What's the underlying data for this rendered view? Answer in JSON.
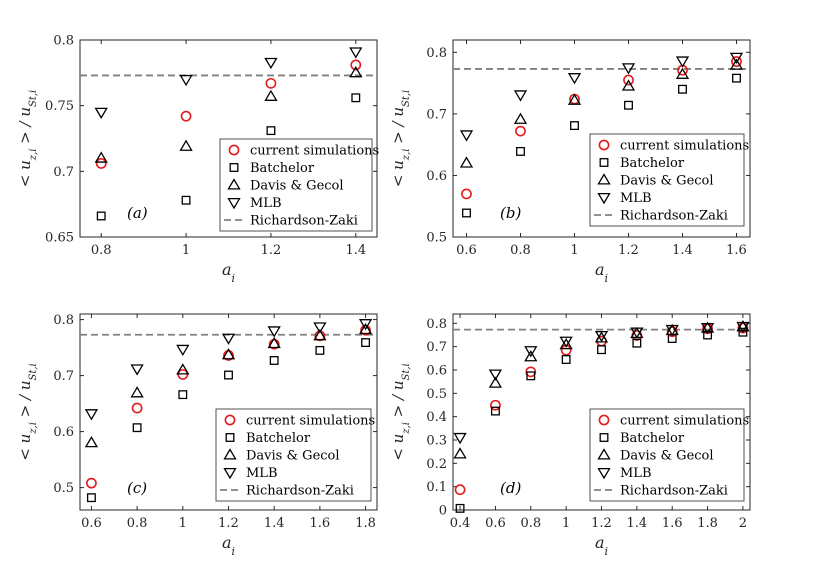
{
  "chart_data": [
    {
      "type": "scatter",
      "panel_label": "(a)",
      "xlabel": "a_i",
      "ylabel": "< u_{z,i} > / u_{St,i}",
      "xlim": [
        0.75,
        1.45
      ],
      "ylim": [
        0.65,
        0.8
      ],
      "xticks": [
        0.8,
        1,
        1.2,
        1.4
      ],
      "xtick_labels": [
        "0.8",
        "1",
        "1.2",
        "1.4"
      ],
      "yticks": [
        0.65,
        0.7,
        0.75,
        0.8
      ],
      "ytick_labels": [
        "0.65",
        "0.7",
        "0.75",
        "0.8"
      ],
      "grid": false,
      "legend_position": "bottom-right",
      "reference_line": {
        "name": "Richardson-Zaki",
        "y": 0.773
      },
      "series": [
        {
          "name": "current simulations",
          "marker": "circle",
          "color": "#e41a1c",
          "x": [
            0.8,
            1.0,
            1.2,
            1.4
          ],
          "y": [
            0.706,
            0.742,
            0.767,
            0.781
          ]
        },
        {
          "name": "Batchelor",
          "marker": "square",
          "color": "#000000",
          "x": [
            0.8,
            1.0,
            1.2,
            1.4
          ],
          "y": [
            0.666,
            0.678,
            0.731,
            0.756
          ]
        },
        {
          "name": "Davis & Gecol",
          "marker": "triangle-up",
          "color": "#000000",
          "x": [
            0.8,
            1.0,
            1.2,
            1.4
          ],
          "y": [
            0.71,
            0.719,
            0.757,
            0.775
          ]
        },
        {
          "name": "MLB",
          "marker": "triangle-down",
          "color": "#000000",
          "x": [
            0.8,
            1.0,
            1.2,
            1.4
          ],
          "y": [
            0.745,
            0.77,
            0.783,
            0.791
          ]
        }
      ]
    },
    {
      "type": "scatter",
      "panel_label": "(b)",
      "xlabel": "a_i",
      "ylabel": "< u_{z,i} > / u_{St,i}",
      "xlim": [
        0.55,
        1.65
      ],
      "ylim": [
        0.5,
        0.82
      ],
      "xticks": [
        0.6,
        0.8,
        1,
        1.2,
        1.4,
        1.6
      ],
      "xtick_labels": [
        "0.6",
        "0.8",
        "1",
        "1.2",
        "1.4",
        "1.6"
      ],
      "yticks": [
        0.5,
        0.6,
        0.7,
        0.8
      ],
      "ytick_labels": [
        "0.5",
        "0.6",
        "0.7",
        "0.8"
      ],
      "grid": false,
      "legend_position": "bottom-right",
      "reference_line": {
        "name": "Richardson-Zaki",
        "y": 0.773
      },
      "series": [
        {
          "name": "current simulations",
          "marker": "circle",
          "color": "#e41a1c",
          "x": [
            0.6,
            0.8,
            1.0,
            1.2,
            1.4,
            1.6
          ],
          "y": [
            0.57,
            0.672,
            0.724,
            0.755,
            0.771,
            0.785
          ]
        },
        {
          "name": "Batchelor",
          "marker": "square",
          "color": "#000000",
          "x": [
            0.6,
            0.8,
            1.0,
            1.2,
            1.4,
            1.6
          ],
          "y": [
            0.539,
            0.639,
            0.681,
            0.714,
            0.74,
            0.758
          ]
        },
        {
          "name": "Davis & Gecol",
          "marker": "triangle-up",
          "color": "#000000",
          "x": [
            0.6,
            0.8,
            1.0,
            1.2,
            1.4,
            1.6
          ],
          "y": [
            0.62,
            0.691,
            0.722,
            0.745,
            0.764,
            0.779
          ]
        },
        {
          "name": "MLB",
          "marker": "triangle-down",
          "color": "#000000",
          "x": [
            0.6,
            0.8,
            1.0,
            1.2,
            1.4,
            1.6
          ],
          "y": [
            0.666,
            0.731,
            0.759,
            0.775,
            0.786,
            0.792
          ]
        }
      ]
    },
    {
      "type": "scatter",
      "panel_label": "(c)",
      "xlabel": "a_i",
      "ylabel": "< u_{z,i} > / u_{St,i}",
      "xlim": [
        0.55,
        1.85
      ],
      "ylim": [
        0.46,
        0.81
      ],
      "xticks": [
        0.6,
        0.8,
        1,
        1.2,
        1.4,
        1.6,
        1.8
      ],
      "xtick_labels": [
        "0.6",
        "0.8",
        "1",
        "1.2",
        "1.4",
        "1.6",
        "1.8"
      ],
      "yticks": [
        0.5,
        0.6,
        0.7,
        0.8
      ],
      "ytick_labels": [
        "0.5",
        "0.6",
        "0.7",
        "0.8"
      ],
      "grid": false,
      "legend_position": "bottom-right",
      "reference_line": {
        "name": "Richardson-Zaki",
        "y": 0.773
      },
      "series": [
        {
          "name": "current simulations",
          "marker": "circle",
          "color": "#e41a1c",
          "x": [
            0.6,
            0.8,
            1.0,
            1.2,
            1.4,
            1.6,
            1.8
          ],
          "y": [
            0.508,
            0.642,
            0.702,
            0.736,
            0.756,
            0.771,
            0.781
          ]
        },
        {
          "name": "Batchelor",
          "marker": "square",
          "color": "#000000",
          "x": [
            0.6,
            0.8,
            1.0,
            1.2,
            1.4,
            1.6,
            1.8
          ],
          "y": [
            0.482,
            0.607,
            0.666,
            0.701,
            0.727,
            0.745,
            0.759
          ]
        },
        {
          "name": "Davis & Gecol",
          "marker": "triangle-up",
          "color": "#000000",
          "x": [
            0.6,
            0.8,
            1.0,
            1.2,
            1.4,
            1.6,
            1.8
          ],
          "y": [
            0.58,
            0.669,
            0.71,
            0.737,
            0.757,
            0.771,
            0.782
          ]
        },
        {
          "name": "MLB",
          "marker": "triangle-down",
          "color": "#000000",
          "x": [
            0.6,
            0.8,
            1.0,
            1.2,
            1.4,
            1.6,
            1.8
          ],
          "y": [
            0.632,
            0.712,
            0.747,
            0.767,
            0.78,
            0.787,
            0.793
          ]
        }
      ]
    },
    {
      "type": "scatter",
      "panel_label": "(d)",
      "xlabel": "a_i",
      "ylabel": "< u_{z,i} > / u_{St,i}",
      "xlim": [
        0.36,
        2.04
      ],
      "ylim": [
        0,
        0.84
      ],
      "xticks": [
        0.4,
        0.6,
        0.8,
        1,
        1.2,
        1.4,
        1.6,
        1.8,
        2
      ],
      "xtick_labels": [
        "0.4",
        "0.6",
        "0.8",
        "1",
        "1.2",
        "1.4",
        "1.6",
        "1.8",
        "2"
      ],
      "yticks": [
        0,
        0.1,
        0.2,
        0.3,
        0.4,
        0.5,
        0.6,
        0.7,
        0.8
      ],
      "ytick_labels": [
        "0",
        "0.1",
        "0.2",
        "0.3",
        "0.4",
        "0.5",
        "0.6",
        "0.7",
        "0.8"
      ],
      "grid": false,
      "legend_position": "bottom-right",
      "reference_line": {
        "name": "Richardson-Zaki",
        "y": 0.773
      },
      "series": [
        {
          "name": "current simulations",
          "marker": "circle",
          "color": "#e41a1c",
          "x": [
            0.4,
            0.6,
            0.8,
            1.0,
            1.2,
            1.4,
            1.6,
            1.8,
            2.0
          ],
          "y": [
            0.087,
            0.449,
            0.592,
            0.685,
            0.724,
            0.748,
            0.764,
            0.777,
            0.78
          ]
        },
        {
          "name": "Batchelor",
          "marker": "square",
          "color": "#000000",
          "x": [
            0.4,
            0.6,
            0.8,
            1.0,
            1.2,
            1.4,
            1.6,
            1.8,
            2.0
          ],
          "y": [
            0.007,
            0.424,
            0.575,
            0.645,
            0.687,
            0.715,
            0.735,
            0.75,
            0.762
          ]
        },
        {
          "name": "Davis & Gecol",
          "marker": "triangle-up",
          "color": "#000000",
          "x": [
            0.4,
            0.6,
            0.8,
            1.0,
            1.2,
            1.4,
            1.6,
            1.8,
            2.0
          ],
          "y": [
            0.24,
            0.543,
            0.656,
            0.708,
            0.737,
            0.756,
            0.769,
            0.779,
            0.785
          ]
        },
        {
          "name": "MLB",
          "marker": "triangle-down",
          "color": "#000000",
          "x": [
            0.4,
            0.6,
            0.8,
            1.0,
            1.2,
            1.4,
            1.6,
            1.8,
            2.0
          ],
          "y": [
            0.311,
            0.583,
            0.683,
            0.724,
            0.748,
            0.763,
            0.774,
            0.782,
            0.787
          ]
        }
      ]
    }
  ]
}
